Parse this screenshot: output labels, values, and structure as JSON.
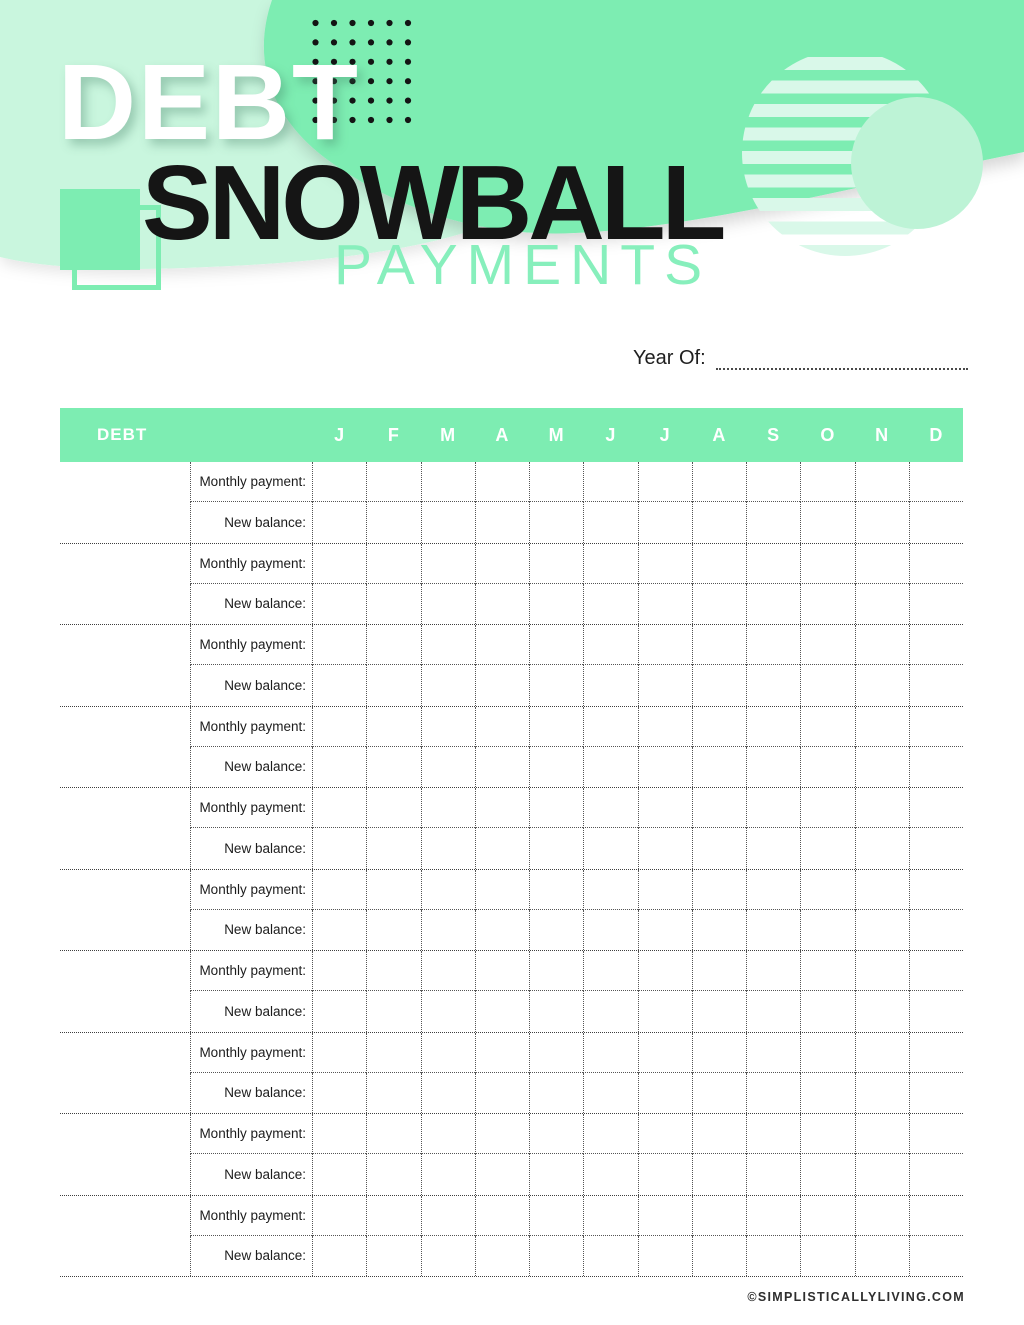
{
  "colors": {
    "green": "#7dedb2",
    "pale_green": "#c9f6de",
    "circle_green": "#bdf3d6",
    "stripe_green": "#d9f8e9",
    "payments_green": "#87efbc",
    "dot_black": "#141414",
    "line_dark": "#3f3f3f",
    "line_mid": "#555555",
    "text_dark": "#1c1c1c",
    "footer_gray": "#2e2e2e"
  },
  "header": {
    "title_top": "DEBT",
    "title_main": "SNOWBALL",
    "title_sub": "PAYMENTS"
  },
  "year_field": {
    "label": "Year Of:",
    "value": ""
  },
  "table": {
    "debt_column_header": "DEBT",
    "months": [
      "J",
      "F",
      "M",
      "A",
      "M",
      "J",
      "J",
      "A",
      "S",
      "O",
      "N",
      "D"
    ],
    "row_labels": {
      "monthly_payment": "Monthly payment:",
      "new_balance": "New balance:"
    },
    "sections": 10
  },
  "footer": {
    "copyright": "©SIMPLISTICALLYLIVING.COM"
  }
}
